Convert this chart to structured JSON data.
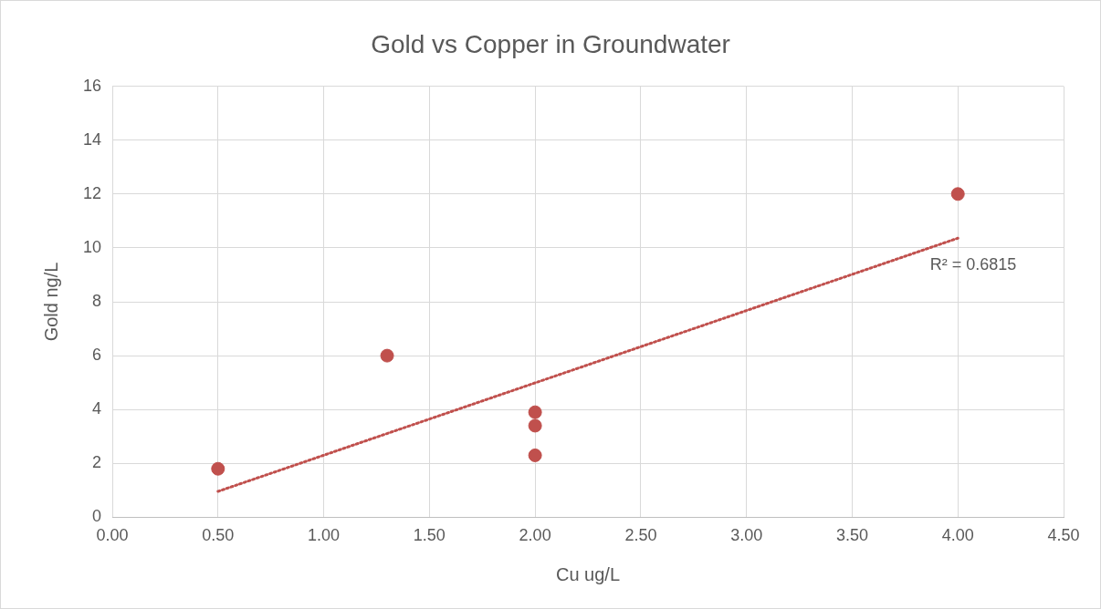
{
  "chart_data": {
    "type": "scatter",
    "title": "Gold vs Copper in Groundwater",
    "xlabel": "Cu ug/L",
    "ylabel": "Gold ng/L",
    "series": [
      {
        "color": "#c0504d",
        "x": [
          0.5,
          1.3,
          2.0,
          2.0,
          2.0,
          4.0
        ],
        "values": [
          1.8,
          6.0,
          3.9,
          3.4,
          2.3,
          12.0
        ],
        "marker": "circle"
      },
      {
        "type": "line",
        "color": "#c0504d",
        "x": [
          0.5,
          4.0
        ],
        "values": [
          0.96,
          10.36
        ],
        "line_style": "dotted",
        "marker": "none"
      }
    ],
    "xlim": [
      0,
      4.5
    ],
    "xticks": [
      {
        "value": 0,
        "label": "0.00"
      },
      {
        "value": 0.5,
        "label": "0.50"
      },
      {
        "value": 1,
        "label": "1.00"
      },
      {
        "value": 1.5,
        "label": "1.50"
      },
      {
        "value": 2,
        "label": "2.00"
      },
      {
        "value": 2.5,
        "label": "2.50"
      },
      {
        "value": 3,
        "label": "3.00"
      },
      {
        "value": 3.5,
        "label": "3.50"
      },
      {
        "value": 4,
        "label": "4.00"
      },
      {
        "value": 4.5,
        "label": "4.50"
      }
    ],
    "ylim": [
      0,
      16
    ],
    "yticks": [
      0,
      2,
      4,
      6,
      8,
      10,
      12,
      14,
      16
    ],
    "annotations": [
      "R² = 0.6815"
    ],
    "grid": true,
    "legend": false
  }
}
